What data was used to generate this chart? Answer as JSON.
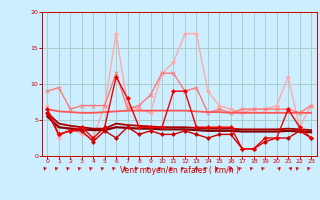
{
  "background_color": "#cceeff",
  "grid_color": "#aacccc",
  "xlabel": "Vent moyen/en rafales ( km/h )",
  "xlim": [
    -0.5,
    23.5
  ],
  "ylim": [
    0,
    20
  ],
  "yticks": [
    0,
    5,
    10,
    15,
    20
  ],
  "xticks": [
    0,
    1,
    2,
    3,
    4,
    5,
    6,
    7,
    8,
    9,
    10,
    11,
    12,
    13,
    14,
    15,
    16,
    17,
    18,
    19,
    20,
    21,
    22,
    23
  ],
  "lines": [
    {
      "x": [
        0,
        1,
        2,
        3,
        4,
        5,
        6,
        7,
        8,
        9,
        10,
        11,
        12,
        13,
        14,
        15,
        16,
        17,
        18,
        19,
        20,
        21,
        22,
        23
      ],
      "y": [
        7,
        2.5,
        4,
        3,
        2.5,
        7,
        17,
        7,
        6.5,
        6,
        11.5,
        13,
        17,
        17,
        9,
        7,
        6.5,
        6,
        6.5,
        6.5,
        7,
        11,
        4,
        7
      ],
      "color": "#ffaaaa",
      "lw": 1.0,
      "marker": "D",
      "markersize": 2.0,
      "zorder": 3
    },
    {
      "x": [
        0,
        1,
        2,
        3,
        4,
        5,
        6,
        7,
        8,
        9,
        10,
        11,
        12,
        13,
        14,
        15,
        16,
        17,
        18,
        19,
        20,
        21,
        22,
        23
      ],
      "y": [
        9,
        9.5,
        6.5,
        7,
        7,
        7,
        11.5,
        6.5,
        7,
        8.5,
        11.5,
        11.5,
        9,
        9.5,
        6,
        6.5,
        6,
        6.5,
        6.5,
        6.5,
        6.5,
        6.5,
        6,
        7
      ],
      "color": "#ff7777",
      "lw": 1.0,
      "marker": "x",
      "markersize": 3.5,
      "zorder": 4
    },
    {
      "x": [
        0,
        1,
        2,
        3,
        4,
        5,
        6,
        7,
        8,
        9,
        10,
        11,
        12,
        13,
        14,
        15,
        16,
        17,
        18,
        19,
        20,
        21,
        22,
        23
      ],
      "y": [
        6.5,
        6.2,
        6.1,
        6.0,
        6.0,
        6.1,
        6.2,
        6.3,
        6.3,
        6.3,
        6.3,
        6.3,
        6.3,
        6.2,
        6.1,
        6.1,
        6.0,
        6.0,
        6.0,
        6.0,
        6.0,
        6.0,
        6.0,
        6.0
      ],
      "color": "#ff5555",
      "lw": 1.3,
      "marker": null,
      "markersize": 0,
      "zorder": 5,
      "linestyle": "-"
    },
    {
      "x": [
        0,
        1,
        2,
        3,
        4,
        5,
        6,
        7,
        8,
        9,
        10,
        11,
        12,
        13,
        14,
        15,
        16,
        17,
        18,
        19,
        20,
        21,
        22,
        23
      ],
      "y": [
        6.5,
        3,
        3.5,
        4,
        2.5,
        4,
        11,
        8,
        4,
        4,
        4,
        9,
        9,
        4,
        4,
        4,
        4,
        1,
        1,
        2.5,
        2.5,
        6.5,
        4,
        2.5
      ],
      "color": "#ee0000",
      "lw": 1.0,
      "marker": "D",
      "markersize": 2.0,
      "zorder": 7
    },
    {
      "x": [
        0,
        1,
        2,
        3,
        4,
        5,
        6,
        7,
        8,
        9,
        10,
        11,
        12,
        13,
        14,
        15,
        16,
        17,
        18,
        19,
        20,
        21,
        22,
        23
      ],
      "y": [
        6,
        3,
        3.5,
        3.5,
        2,
        3.5,
        2.5,
        4,
        3,
        3.5,
        3,
        3,
        3.5,
        3,
        2.5,
        3,
        3,
        1,
        1,
        2,
        2.5,
        2.5,
        3.5,
        2.5
      ],
      "color": "#cc0000",
      "lw": 1.0,
      "marker": "D",
      "markersize": 2.0,
      "zorder": 6
    },
    {
      "x": [
        0,
        1,
        2,
        3,
        4,
        5,
        6,
        7,
        8,
        9,
        10,
        11,
        12,
        13,
        14,
        15,
        16,
        17,
        18,
        19,
        20,
        21,
        22,
        23
      ],
      "y": [
        6.0,
        4.5,
        4.2,
        4.0,
        3.8,
        3.8,
        4.5,
        4.3,
        4.2,
        4.1,
        4.0,
        4.0,
        4.0,
        3.9,
        3.8,
        3.8,
        3.8,
        3.7,
        3.7,
        3.7,
        3.7,
        3.8,
        3.7,
        3.6
      ],
      "color": "#aa0000",
      "lw": 1.3,
      "marker": null,
      "markersize": 0,
      "zorder": 5,
      "linestyle": "-"
    },
    {
      "x": [
        0,
        1,
        2,
        3,
        4,
        5,
        6,
        7,
        8,
        9,
        10,
        11,
        12,
        13,
        14,
        15,
        16,
        17,
        18,
        19,
        20,
        21,
        22,
        23
      ],
      "y": [
        5.5,
        4.0,
        3.8,
        3.7,
        3.6,
        3.6,
        4.0,
        3.9,
        3.8,
        3.8,
        3.7,
        3.7,
        3.7,
        3.6,
        3.5,
        3.5,
        3.5,
        3.4,
        3.4,
        3.4,
        3.4,
        3.5,
        3.4,
        3.3
      ],
      "color": "#880000",
      "lw": 1.6,
      "marker": null,
      "markersize": 0,
      "zorder": 5,
      "linestyle": "-"
    }
  ],
  "arrow_dirs": [
    -1,
    -1,
    -1,
    -1,
    -1,
    -1,
    -1,
    -1,
    -1,
    -1,
    -1,
    -1,
    -1,
    -1,
    -1,
    -1,
    -1,
    -1,
    -1,
    -1,
    1,
    1,
    -1,
    -1
  ],
  "arrow_ups": [
    0,
    0,
    0,
    0,
    0,
    0,
    0,
    0,
    0,
    0,
    0,
    0,
    0,
    1,
    0,
    0,
    1,
    0,
    0,
    0,
    0,
    0,
    0,
    0
  ]
}
